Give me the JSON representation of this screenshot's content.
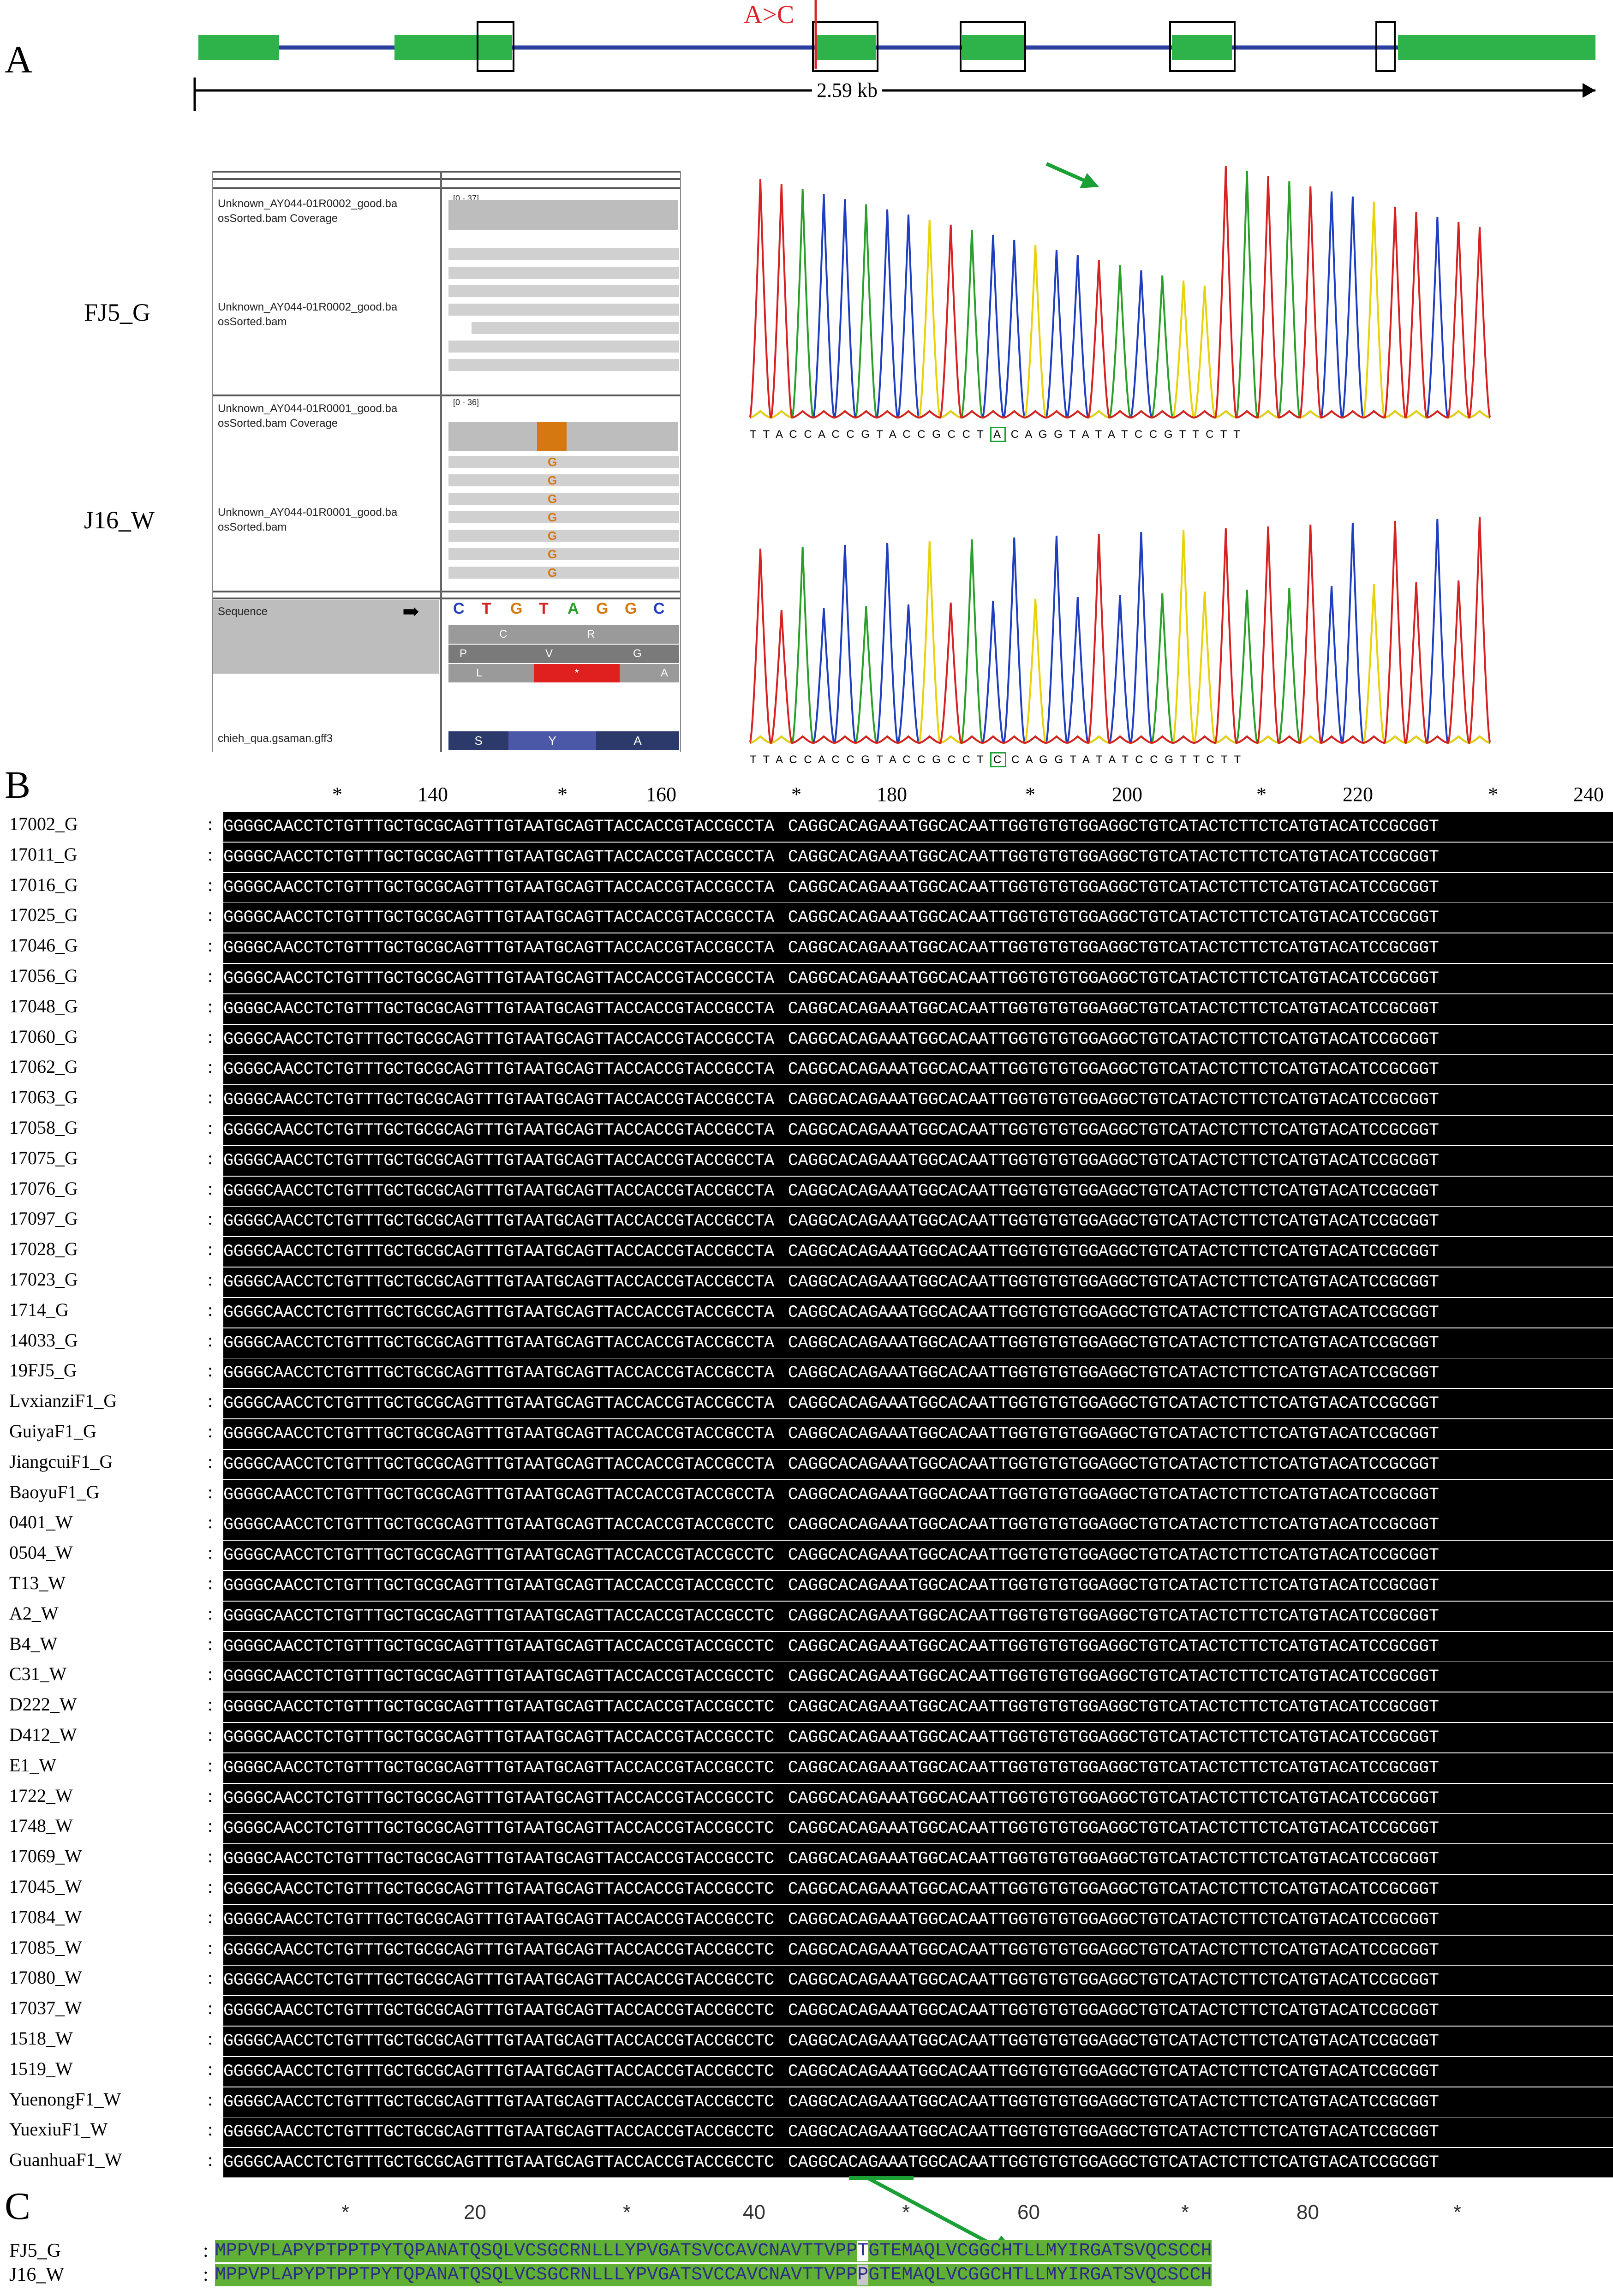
{
  "panels": {
    "a": "A",
    "b": "B",
    "c": "C"
  },
  "gene_model": {
    "mutation_label": "A>C",
    "length_label": "2.59 kb",
    "exon_color": "#2db34a",
    "intron_color": "#2a3f9e",
    "mutation_color": "#d9242b"
  },
  "samples": {
    "top": "FJ5_G",
    "bottom": "J16_W"
  },
  "igv": {
    "track1_cov_label": "Unknown_AY044-01R0002_good.ba osSorted.bam Coverage",
    "track1_range": "[0 - 37]",
    "track1_bam_label": "Unknown_AY044-01R0002_good.ba osSorted.bam",
    "track2_cov_label": "Unknown_AY044-01R0001_good.ba osSorted.bam Coverage",
    "track2_range": "[0 - 36]",
    "track2_bam_label": "Unknown_AY044-01R0001_good.ba osSorted.bam",
    "mismatch_base": "G",
    "sequence_label": "Sequence",
    "sequence_arrow": "➡",
    "ref_bases": [
      "C",
      "T",
      "G",
      "T",
      "A",
      "G",
      "G",
      "C"
    ],
    "aa_frame1": [
      "C",
      "R"
    ],
    "aa_frame2": [
      "P",
      "V",
      "G"
    ],
    "aa_frame3": [
      "L",
      "*",
      "A"
    ],
    "gff_label": "chieh_qua.gsaman.gff3",
    "gff_aa": [
      "S",
      "Y",
      "A"
    ]
  },
  "chromatograms": {
    "seq1_before": "T T A C C A C C G T A C C G C C T",
    "seq1_highlight": "A",
    "seq1_after": "C A G G T A T A T C C G T T C T T",
    "seq2_before": "T T A C C A C C G T A C C G C C T",
    "seq2_highlight": "C",
    "seq2_after": "C A G G T A T A T C C G T T C T T",
    "trace_colors": {
      "A": "#2aa02a",
      "C": "#1f3fbf",
      "G": "#e8d20a",
      "T": "#d62222"
    }
  },
  "alignment": {
    "ruler": [
      {
        "label": "*",
        "x": 0
      },
      {
        "label": "140",
        "x": 0
      },
      {
        "label": "*",
        "x": 0
      },
      {
        "label": "160",
        "x": 0
      },
      {
        "label": "*",
        "x": 0
      },
      {
        "label": "180",
        "x": 0
      },
      {
        "label": "*",
        "x": 0
      },
      {
        "label": "200",
        "x": 0
      },
      {
        "label": "*",
        "x": 0
      },
      {
        "label": "220",
        "x": 0
      },
      {
        "label": "*",
        "x": 0
      },
      {
        "label": "240",
        "x": 0
      }
    ],
    "seq_left": "GGGGCAACCTCTGTTTGCTGCGCAGTTTGTAATGCAGTTACCACCGTACCGCCT",
    "seq_right": "CAGGCACAGAAATGGCACAATTGGTGTGTGGAGGCTGTCATACTCTTCTCATGTACATCCGCGGT",
    "colon": ":",
    "rows": [
      {
        "name": "17002_G",
        "snp": "A"
      },
      {
        "name": "17011_G",
        "snp": "A"
      },
      {
        "name": "17016_G",
        "snp": "A"
      },
      {
        "name": "17025_G",
        "snp": "A"
      },
      {
        "name": "17046_G",
        "snp": "A"
      },
      {
        "name": "17056_G",
        "snp": "A"
      },
      {
        "name": "17048_G",
        "snp": "A"
      },
      {
        "name": "17060_G",
        "snp": "A"
      },
      {
        "name": "17062_G",
        "snp": "A"
      },
      {
        "name": "17063_G",
        "snp": "A"
      },
      {
        "name": "17058_G",
        "snp": "A"
      },
      {
        "name": "17075_G",
        "snp": "A"
      },
      {
        "name": "17076_G",
        "snp": "A"
      },
      {
        "name": "17097_G",
        "snp": "A"
      },
      {
        "name": "17028_G",
        "snp": "A"
      },
      {
        "name": "17023_G",
        "snp": "A"
      },
      {
        "name": "1714_G",
        "snp": "A"
      },
      {
        "name": "14033_G",
        "snp": "A"
      },
      {
        "name": "19FJ5_G",
        "snp": "A"
      },
      {
        "name": "LvxianziF1_G",
        "snp": "A"
      },
      {
        "name": "GuiyaF1_G",
        "snp": "A"
      },
      {
        "name": "JiangcuiF1_G",
        "snp": "A"
      },
      {
        "name": "BaoyuF1_G",
        "snp": "A"
      },
      {
        "name": "0401_W",
        "snp": "C"
      },
      {
        "name": "0504_W",
        "snp": "C"
      },
      {
        "name": "T13_W",
        "snp": "C"
      },
      {
        "name": "A2_W",
        "snp": "C"
      },
      {
        "name": "B4_W",
        "snp": "C"
      },
      {
        "name": "C31_W",
        "snp": "C"
      },
      {
        "name": "D222_W",
        "snp": "C"
      },
      {
        "name": "D412_W",
        "snp": "C"
      },
      {
        "name": "E1_W",
        "snp": "C"
      },
      {
        "name": "1722_W",
        "snp": "C"
      },
      {
        "name": "1748_W",
        "snp": "C"
      },
      {
        "name": "17069_W",
        "snp": "C"
      },
      {
        "name": "17045_W",
        "snp": "C"
      },
      {
        "name": "17084_W",
        "snp": "C"
      },
      {
        "name": "17085_W",
        "snp": "C"
      },
      {
        "name": "17080_W",
        "snp": "C"
      },
      {
        "name": "17037_W",
        "snp": "C"
      },
      {
        "name": "1518_W",
        "snp": "C"
      },
      {
        "name": "1519_W",
        "snp": "C"
      },
      {
        "name": "YuenongF1_W",
        "snp": "C"
      },
      {
        "name": "YuexiuF1_W",
        "snp": "C"
      },
      {
        "name": "GuanhuaF1_W",
        "snp": "C"
      }
    ]
  },
  "protein": {
    "ruler": [
      "*",
      "20",
      "*",
      "40",
      "*",
      "60",
      "*",
      "80",
      "*"
    ],
    "colon": ":",
    "prefix": "MPPVPLAPYPTPPTPYTQPANATQSQLVCSGCRNLLLYPVGATSVCCAVCNAVTTVPP",
    "suffix": "GTEMAQLVCGGCHTLLMYIRGATSVQCSCCH",
    "rows": [
      {
        "name": "FJ5_G",
        "aa": "T"
      },
      {
        "name": "J16_W",
        "aa": "P"
      }
    ]
  }
}
